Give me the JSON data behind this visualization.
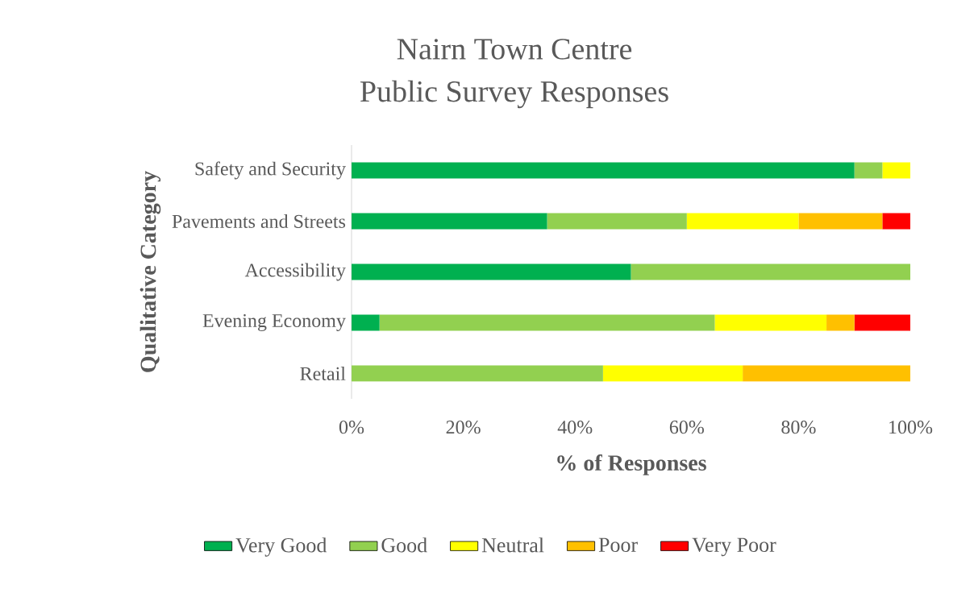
{
  "chart_data": {
    "type": "bar",
    "orientation": "horizontal",
    "stacked": true,
    "title": "Nairn Town Centre",
    "subtitle": "Public Survey Responses",
    "xlabel": "% of Responses",
    "ylabel": "Qualitative Category",
    "categories": [
      "Safety and Security",
      "Pavements and Streets",
      "Accessibility",
      "Evening Economy",
      "Retail"
    ],
    "series": [
      {
        "name": "Very Good",
        "color": "#00b050",
        "values": [
          90,
          35,
          50,
          5,
          0
        ]
      },
      {
        "name": "Good",
        "color": "#92d050",
        "values": [
          5,
          25,
          50,
          60,
          45
        ]
      },
      {
        "name": "Neutral",
        "color": "#ffff00",
        "values": [
          5,
          20,
          0,
          20,
          25
        ]
      },
      {
        "name": "Poor",
        "color": "#ffc000",
        "values": [
          0,
          15,
          0,
          5,
          30
        ]
      },
      {
        "name": "Very Poor",
        "color": "#ff0000",
        "values": [
          0,
          5,
          0,
          10,
          0
        ]
      }
    ],
    "xlim": [
      0,
      100
    ],
    "xticks": [
      {
        "value": 0,
        "label": "0%"
      },
      {
        "value": 20,
        "label": "20%"
      },
      {
        "value": 40,
        "label": "40%"
      },
      {
        "value": 60,
        "label": "60%"
      },
      {
        "value": 80,
        "label": "80%"
      },
      {
        "value": 100,
        "label": "100%"
      }
    ],
    "legend": "bottom"
  }
}
